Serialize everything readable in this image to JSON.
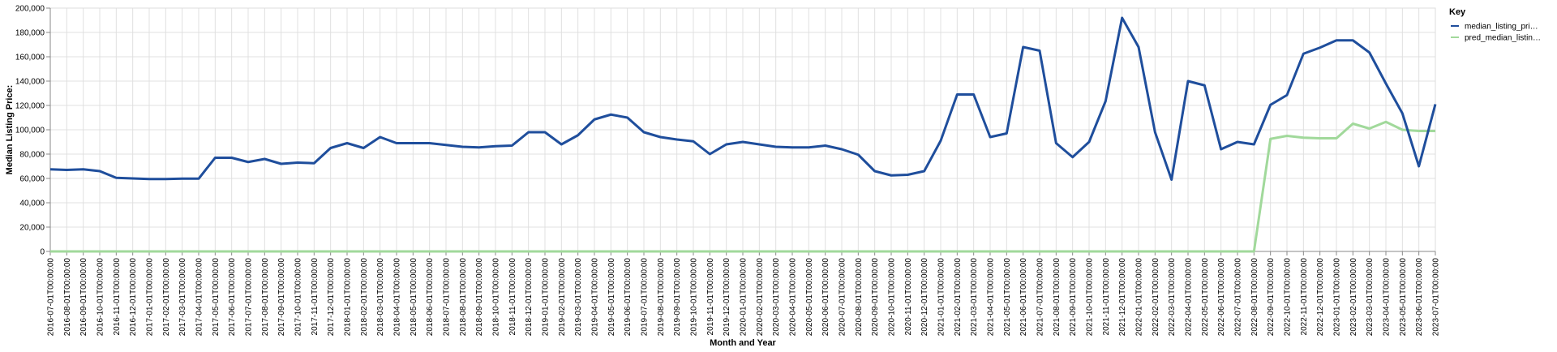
{
  "chart_data": {
    "type": "line",
    "xlabel": "Month and Year",
    "ylabel": "Median Listing Price:",
    "ylim": [
      0,
      200000
    ],
    "y_ticks": [
      "0",
      "20,000",
      "40,000",
      "60,000",
      "80,000",
      "100,000",
      "120,000",
      "140,000",
      "160,000",
      "180,000",
      "200,000"
    ],
    "grid": true,
    "legend": {
      "title": "Key",
      "position": "right",
      "entries": [
        "median_listing_pri…",
        "pred_median_listin…"
      ]
    },
    "categories": [
      "2016-07-01T00:00:00",
      "2016-08-01T00:00:00",
      "2016-09-01T00:00:00",
      "2016-10-01T00:00:00",
      "2016-11-01T00:00:00",
      "2016-12-01T00:00:00",
      "2017-01-01T00:00:00",
      "2017-02-01T00:00:00",
      "2017-03-01T00:00:00",
      "2017-04-01T00:00:00",
      "2017-05-01T00:00:00",
      "2017-06-01T00:00:00",
      "2017-07-01T00:00:00",
      "2017-08-01T00:00:00",
      "2017-09-01T00:00:00",
      "2017-10-01T00:00:00",
      "2017-11-01T00:00:00",
      "2017-12-01T00:00:00",
      "2018-01-01T00:00:00",
      "2018-02-01T00:00:00",
      "2018-03-01T00:00:00",
      "2018-04-01T00:00:00",
      "2018-05-01T00:00:00",
      "2018-06-01T00:00:00",
      "2018-07-01T00:00:00",
      "2018-08-01T00:00:00",
      "2018-09-01T00:00:00",
      "2018-10-01T00:00:00",
      "2018-11-01T00:00:00",
      "2018-12-01T00:00:00",
      "2019-01-01T00:00:00",
      "2019-02-01T00:00:00",
      "2019-03-01T00:00:00",
      "2019-04-01T00:00:00",
      "2019-05-01T00:00:00",
      "2019-06-01T00:00:00",
      "2019-07-01T00:00:00",
      "2019-08-01T00:00:00",
      "2019-09-01T00:00:00",
      "2019-10-01T00:00:00",
      "2019-11-01T00:00:00",
      "2019-12-01T00:00:00",
      "2020-01-01T00:00:00",
      "2020-02-01T00:00:00",
      "2020-03-01T00:00:00",
      "2020-04-01T00:00:00",
      "2020-05-01T00:00:00",
      "2020-06-01T00:00:00",
      "2020-07-01T00:00:00",
      "2020-08-01T00:00:00",
      "2020-09-01T00:00:00",
      "2020-10-01T00:00:00",
      "2020-11-01T00:00:00",
      "2020-12-01T00:00:00",
      "2021-01-01T00:00:00",
      "2021-02-01T00:00:00",
      "2021-03-01T00:00:00",
      "2021-04-01T00:00:00",
      "2021-05-01T00:00:00",
      "2021-06-01T00:00:00",
      "2021-07-01T00:00:00",
      "2021-08-01T00:00:00",
      "2021-09-01T00:00:00",
      "2021-10-01T00:00:00",
      "2021-11-01T00:00:00",
      "2021-12-01T00:00:00",
      "2022-01-01T00:00:00",
      "2022-02-01T00:00:00",
      "2022-03-01T00:00:00",
      "2022-04-01T00:00:00",
      "2022-05-01T00:00:00",
      "2022-06-01T00:00:00",
      "2022-07-01T00:00:00",
      "2022-08-01T00:00:00",
      "2022-09-01T00:00:00",
      "2022-10-01T00:00:00",
      "2022-11-01T00:00:00",
      "2022-12-01T00:00:00",
      "2023-01-01T00:00:00",
      "2023-02-01T00:00:00",
      "2023-03-01T00:00:00",
      "2023-04-01T00:00:00",
      "2023-05-01T00:00:00",
      "2023-06-01T00:00:00",
      "2023-07-01T00:00:00"
    ],
    "series": [
      {
        "name": "median_listing_pri…",
        "color": "#1f4e9c",
        "values": [
          67500,
          67000,
          67500,
          66000,
          60500,
          60000,
          59500,
          59500,
          59800,
          59800,
          77000,
          77000,
          73500,
          76000,
          72000,
          73000,
          72500,
          85000,
          89000,
          85000,
          94000,
          89000,
          89000,
          89000,
          87500,
          86000,
          85500,
          86500,
          87000,
          98000,
          98000,
          88000,
          95500,
          108500,
          112500,
          110000,
          98000,
          94000,
          92000,
          90500,
          80000,
          88000,
          90000,
          88000,
          86000,
          85500,
          85500,
          87000,
          84000,
          79500,
          66000,
          62500,
          63000,
          66000,
          91000,
          129000,
          129000,
          94000,
          97000,
          168000,
          165000,
          89000,
          77500,
          90000,
          123500,
          192000,
          168000,
          98000,
          59000,
          140000,
          136500,
          84000,
          90000,
          88000,
          120500,
          128500,
          162500,
          167500,
          173500,
          173500,
          163500,
          138000,
          113500,
          70000,
          121000
        ]
      },
      {
        "name": "pred_median_listin…",
        "color": "#a1d99b",
        "values": [
          0,
          0,
          0,
          0,
          0,
          0,
          0,
          0,
          0,
          0,
          0,
          0,
          0,
          0,
          0,
          0,
          0,
          0,
          0,
          0,
          0,
          0,
          0,
          0,
          0,
          0,
          0,
          0,
          0,
          0,
          0,
          0,
          0,
          0,
          0,
          0,
          0,
          0,
          0,
          0,
          0,
          0,
          0,
          0,
          0,
          0,
          0,
          0,
          0,
          0,
          0,
          0,
          0,
          0,
          0,
          0,
          0,
          0,
          0,
          0,
          0,
          0,
          0,
          0,
          0,
          0,
          0,
          0,
          0,
          0,
          0,
          0,
          0,
          0,
          92500,
          95000,
          93500,
          93000,
          93000,
          105000,
          101000,
          106500,
          100000,
          99000,
          99000
        ]
      }
    ]
  }
}
